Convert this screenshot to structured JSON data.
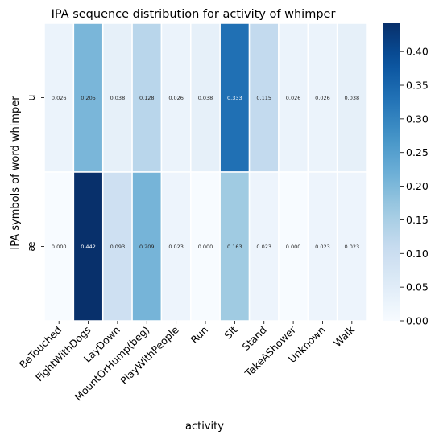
{
  "chart_data": {
    "type": "heatmap",
    "title": "IPA sequence distribution for activity of whimper",
    "xlabel": "activity",
    "ylabel": "IPA symbols of word whimper",
    "x_categories": [
      "BeTouched",
      "FightWithDogs",
      "LayDown",
      "MountOrHump(beg)",
      "PlayWithPeople",
      "Run",
      "Sit",
      "Stand",
      "TakeAShower",
      "Unknown",
      "Walk"
    ],
    "y_categories": [
      "u",
      "æ"
    ],
    "values": [
      [
        0.026,
        0.205,
        0.038,
        0.128,
        0.026,
        0.038,
        0.333,
        0.115,
        0.026,
        0.026,
        0.038
      ],
      [
        0.0,
        0.442,
        0.093,
        0.209,
        0.023,
        0.0,
        0.163,
        0.023,
        0.0,
        0.023,
        0.023
      ]
    ],
    "value_labels": [
      [
        "0.026",
        "0.205",
        "0.038",
        "0.128",
        "0.026",
        "0.038",
        "0.333",
        "0.115",
        "0.026",
        "0.026",
        "0.038"
      ],
      [
        "0.000",
        "0.442",
        "0.093",
        "0.209",
        "0.023",
        "0.000",
        "0.163",
        "0.023",
        "0.000",
        "0.023",
        "0.023"
      ]
    ],
    "colorbar": {
      "colormap": "Blues",
      "vmin": 0.0,
      "vmax": 0.442,
      "ticks": [
        0.0,
        0.05,
        0.1,
        0.15,
        0.2,
        0.25,
        0.3,
        0.35,
        0.4
      ],
      "tick_labels": [
        "0.00",
        "0.05",
        "0.10",
        "0.15",
        "0.20",
        "0.25",
        "0.30",
        "0.35",
        "0.40"
      ]
    },
    "grid": false,
    "legend": "colorbar-right"
  }
}
